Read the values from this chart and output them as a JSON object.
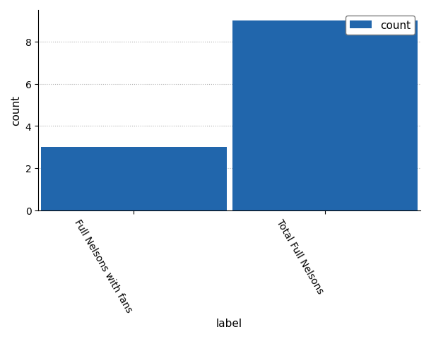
{
  "categories": [
    "Full Nelsons with fans",
    "Total Full Nelsons"
  ],
  "values": [
    3,
    9
  ],
  "bar_color": "#2166ac",
  "xlabel": "label",
  "ylabel": "count",
  "ylim": [
    0,
    9.5
  ],
  "yticks": [
    0,
    2,
    4,
    6,
    8
  ],
  "legend_label": "count",
  "background_color": "#ffffff",
  "grid_color": "#b0b0b0",
  "axis_fontsize": 11,
  "tick_fontsize": 10,
  "legend_fontsize": 11,
  "bar_width": 0.97,
  "xlim": [
    -0.5,
    1.5
  ],
  "tick_rotation": -60
}
